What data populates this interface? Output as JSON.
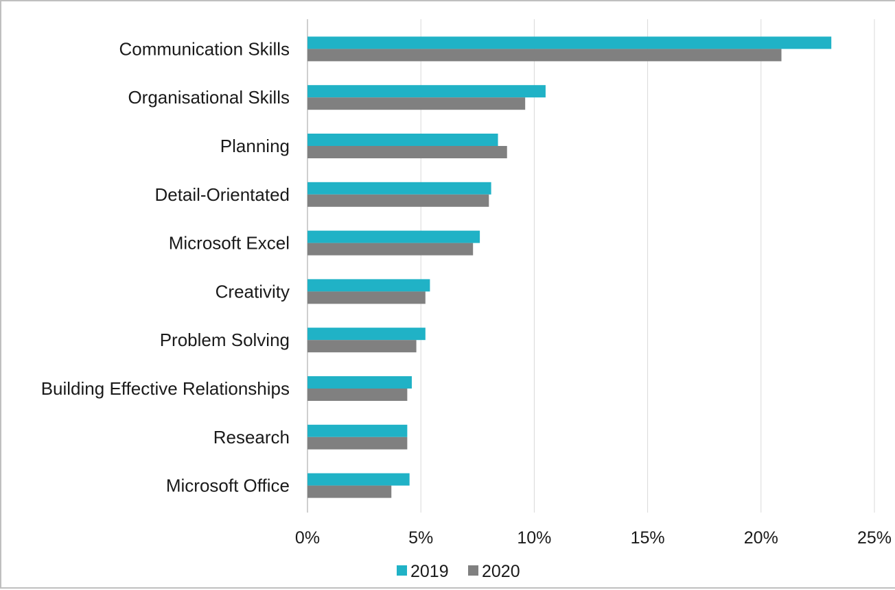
{
  "chart_data": {
    "type": "bar",
    "orientation": "horizontal",
    "categories": [
      "Communication Skills",
      "Organisational Skills",
      "Planning",
      "Detail-Orientated",
      "Microsoft Excel",
      "Creativity",
      "Problem Solving",
      "Building Effective Relationships",
      "Research",
      "Microsoft Office"
    ],
    "series": [
      {
        "name": "2019",
        "color": "#20b2c6",
        "values": [
          23.1,
          10.5,
          8.4,
          8.1,
          7.6,
          5.4,
          5.2,
          4.6,
          4.4,
          4.5
        ]
      },
      {
        "name": "2020",
        "color": "#808080",
        "values": [
          20.9,
          9.6,
          8.8,
          8.0,
          7.3,
          5.2,
          4.8,
          4.4,
          4.4,
          3.7
        ]
      }
    ],
    "x_ticks": [
      "0%",
      "5%",
      "10%",
      "15%",
      "20%",
      "25%"
    ],
    "xlim": [
      0,
      25
    ],
    "grid": "vertical",
    "legend_position": "bottom"
  }
}
